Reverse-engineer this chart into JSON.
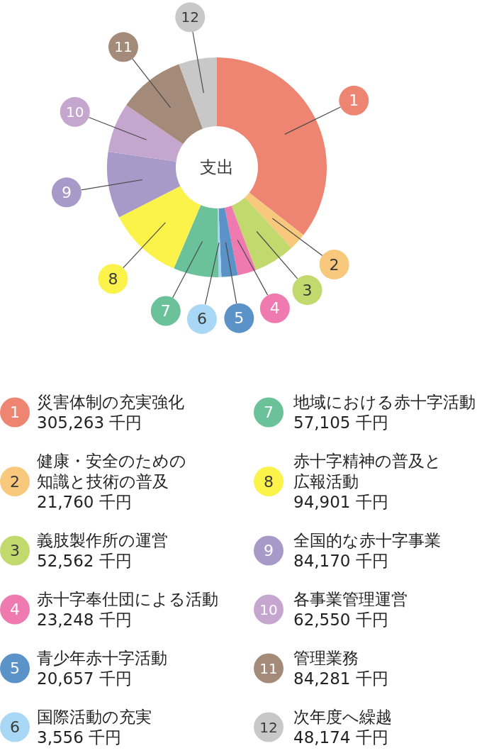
{
  "chart_data": {
    "type": "donut",
    "title": "支出",
    "categories": [
      "災害体制の充実強化",
      "健康・安全のための知識と技術の普及",
      "義肢製作所の運営",
      "赤十字奉仕団による活動",
      "青少年赤十字活動",
      "国際活動の充実",
      "地域における赤十字活動",
      "赤十字精神の普及と広報活動",
      "全国的な赤十字事業",
      "各事業管理運営",
      "管理業務",
      "次年度へ繰越"
    ],
    "values": [
      305263,
      21760,
      52562,
      23248,
      20657,
      3556,
      57105,
      94901,
      84170,
      62550,
      84281,
      48174
    ],
    "value_labels": [
      "305,263 千円",
      "21,760 千円",
      "52,562 千円",
      "23,248 千円",
      "20,657 千円",
      "3,556 千円",
      "57,105 千円",
      "94,901 千円",
      "84,170 千円",
      "62,550 千円",
      "84,281 千円",
      "48,174 千円"
    ],
    "colors": [
      "#ee8572",
      "#f8c97c",
      "#c2d96e",
      "#ee7ab0",
      "#5b93c8",
      "#a8d8f5",
      "#6bc29a",
      "#fbf24a",
      "#a79ac9",
      "#c5a6cf",
      "#a48a78",
      "#c8c8c8"
    ],
    "annotations": [
      "1",
      "2",
      "3",
      "4",
      "5",
      "6",
      "7",
      "8",
      "9",
      "10",
      "11",
      "12"
    ],
    "legend": "bottom"
  }
}
